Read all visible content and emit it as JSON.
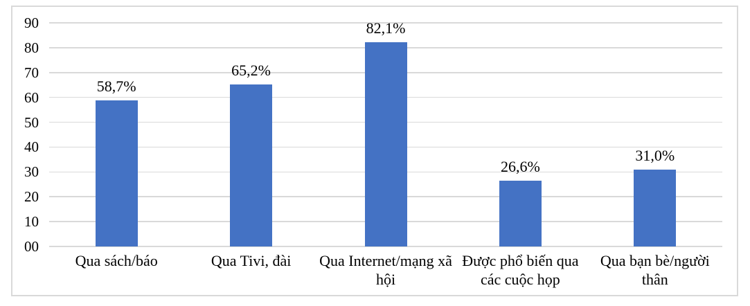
{
  "chart_data": {
    "type": "bar",
    "title": "",
    "categories": [
      "Qua sách/báo",
      "Qua Tivi, đài",
      "Qua Internet/mạng xã hội",
      "Được phổ biến qua các cuộc họp",
      "Qua bạn bè/người thân"
    ],
    "values": [
      58.7,
      65.2,
      82.1,
      26.6,
      31.0
    ],
    "data_labels": [
      "58,7%",
      "65,2%",
      "82,1%",
      "26,6%",
      "31,0%"
    ],
    "y_ticks": [
      {
        "value": 0,
        "label": "00"
      },
      {
        "value": 10,
        "label": "10"
      },
      {
        "value": 20,
        "label": "20"
      },
      {
        "value": 30,
        "label": "30"
      },
      {
        "value": 40,
        "label": "40"
      },
      {
        "value": 50,
        "label": "50"
      },
      {
        "value": 60,
        "label": "60"
      },
      {
        "value": 70,
        "label": "70"
      },
      {
        "value": 80,
        "label": "80"
      },
      {
        "value": 90,
        "label": "90"
      }
    ],
    "ylim": [
      0,
      90
    ],
    "xlabel": "",
    "ylabel": "",
    "grid": "horizontal",
    "legend": "none",
    "bar_color": "#4472c4",
    "gridline_color": "#d9d9d9",
    "frame_border_color": "#d9d9d9",
    "text_color": "#000000"
  }
}
